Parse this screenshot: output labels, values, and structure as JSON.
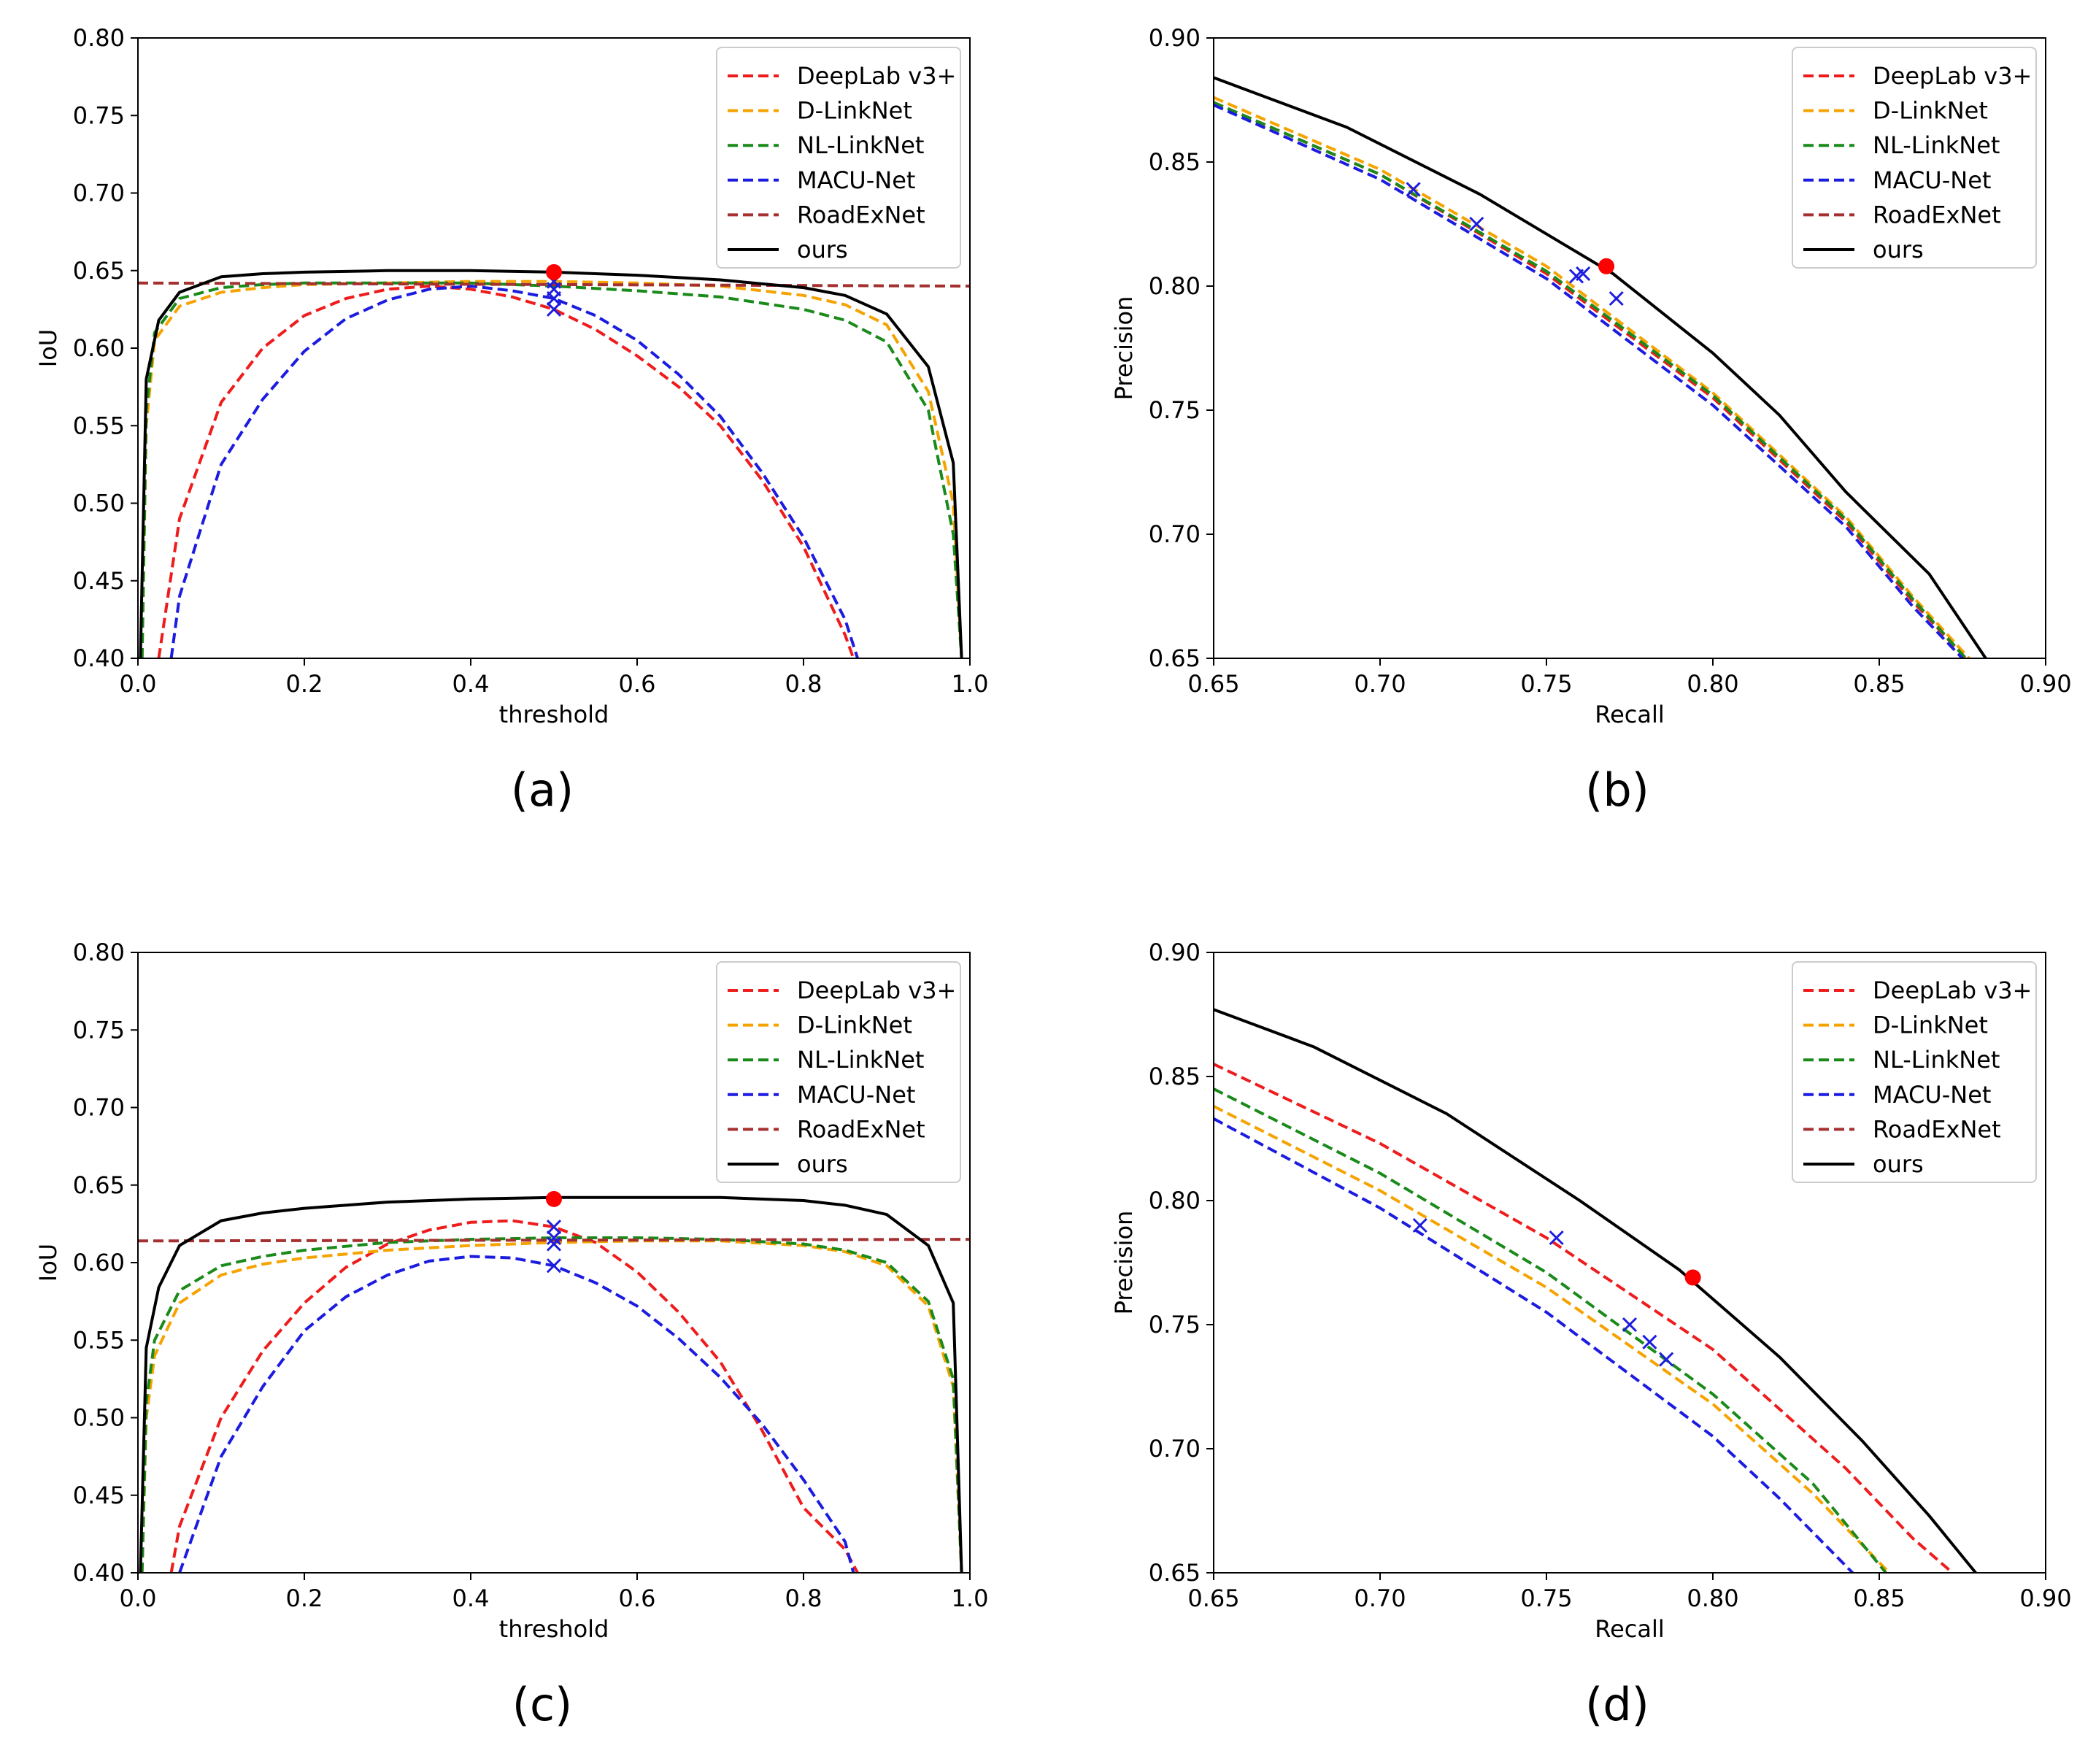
{
  "figure": {
    "legend_entries": [
      {
        "name": "DeepLab v3+",
        "color": "#ee1c1c",
        "dash": true
      },
      {
        "name": "D-LinkNet",
        "color": "#f5a300",
        "dash": true
      },
      {
        "name": "NL-LinkNet",
        "color": "#1a8a1a",
        "dash": true
      },
      {
        "name": "MACU-Net",
        "color": "#1c1ce0",
        "dash": true
      },
      {
        "name": "RoadExNet",
        "color": "#a53030",
        "dash": true
      },
      {
        "name": "ours",
        "color": "#000000",
        "dash": false
      }
    ]
  },
  "chart_data": [
    {
      "panel": "(a)",
      "type": "line",
      "xlabel": "threshold",
      "ylabel": "IoU",
      "xlim": [
        0.0,
        1.0
      ],
      "ylim": [
        0.4,
        0.8
      ],
      "xticks": [
        "0.0",
        "0.2",
        "0.4",
        "0.6",
        "0.8",
        "1.0"
      ],
      "yticks": [
        "0.40",
        "0.45",
        "0.50",
        "0.55",
        "0.60",
        "0.65",
        "0.70",
        "0.75",
        "0.80"
      ],
      "legend": "top-right",
      "series": [
        {
          "name": "DeepLab v3+",
          "x": [
            0.025,
            0.05,
            0.1,
            0.15,
            0.2,
            0.25,
            0.3,
            0.35,
            0.4,
            0.45,
            0.5,
            0.55,
            0.6,
            0.65,
            0.7,
            0.75,
            0.8,
            0.85,
            0.86
          ],
          "y": [
            0.4,
            0.49,
            0.565,
            0.6,
            0.621,
            0.632,
            0.638,
            0.64,
            0.638,
            0.633,
            0.625,
            0.612,
            0.595,
            0.575,
            0.55,
            0.515,
            0.472,
            0.415,
            0.4
          ]
        },
        {
          "name": "D-LinkNet",
          "x": [
            0.005,
            0.01,
            0.02,
            0.05,
            0.1,
            0.15,
            0.2,
            0.3,
            0.4,
            0.5,
            0.6,
            0.7,
            0.8,
            0.85,
            0.9,
            0.95,
            0.98,
            0.99
          ],
          "y": [
            0.4,
            0.55,
            0.605,
            0.627,
            0.636,
            0.639,
            0.641,
            0.642,
            0.643,
            0.643,
            0.642,
            0.64,
            0.634,
            0.628,
            0.615,
            0.572,
            0.5,
            0.4
          ]
        },
        {
          "name": "NL-LinkNet",
          "x": [
            0.005,
            0.01,
            0.02,
            0.05,
            0.1,
            0.15,
            0.2,
            0.3,
            0.4,
            0.5,
            0.6,
            0.7,
            0.8,
            0.85,
            0.9,
            0.95,
            0.98,
            0.99
          ],
          "y": [
            0.4,
            0.56,
            0.61,
            0.632,
            0.639,
            0.641,
            0.642,
            0.642,
            0.642,
            0.64,
            0.637,
            0.633,
            0.625,
            0.618,
            0.604,
            0.56,
            0.48,
            0.4
          ]
        },
        {
          "name": "MACU-Net",
          "x": [
            0.04,
            0.05,
            0.1,
            0.15,
            0.2,
            0.25,
            0.3,
            0.35,
            0.4,
            0.45,
            0.5,
            0.55,
            0.6,
            0.65,
            0.7,
            0.75,
            0.8,
            0.85,
            0.865
          ],
          "y": [
            0.4,
            0.44,
            0.525,
            0.567,
            0.598,
            0.619,
            0.631,
            0.638,
            0.64,
            0.637,
            0.632,
            0.621,
            0.605,
            0.583,
            0.556,
            0.52,
            0.478,
            0.425,
            0.4
          ]
        },
        {
          "name": "RoadExNet",
          "x": [
            0.0,
            1.0
          ],
          "y": [
            0.642,
            0.64
          ]
        },
        {
          "name": "ours",
          "x": [
            0.003,
            0.01,
            0.025,
            0.05,
            0.1,
            0.15,
            0.2,
            0.3,
            0.4,
            0.5,
            0.6,
            0.7,
            0.8,
            0.85,
            0.9,
            0.95,
            0.98,
            0.99
          ],
          "y": [
            0.4,
            0.58,
            0.618,
            0.636,
            0.646,
            0.648,
            0.649,
            0.65,
            0.65,
            0.649,
            0.647,
            0.644,
            0.639,
            0.634,
            0.622,
            0.588,
            0.526,
            0.4
          ]
        }
      ],
      "markers": [
        {
          "series": "DeepLab v3+",
          "x": 0.5,
          "y": 0.625,
          "symbol": "x"
        },
        {
          "series": "MACU-Net",
          "x": 0.5,
          "y": 0.632,
          "symbol": "x"
        },
        {
          "series": "NL-LinkNet",
          "x": 0.5,
          "y": 0.638,
          "symbol": "x"
        },
        {
          "series": "D-LinkNet",
          "x": 0.5,
          "y": 0.643,
          "symbol": "x"
        },
        {
          "series": "ours",
          "x": 0.5,
          "y": 0.649,
          "symbol": "dot"
        }
      ]
    },
    {
      "panel": "(b)",
      "type": "line",
      "xlabel": "Recall",
      "ylabel": "Precision",
      "xlim": [
        0.65,
        0.9
      ],
      "ylim": [
        0.65,
        0.9
      ],
      "xticks": [
        "0.65",
        "0.70",
        "0.75",
        "0.80",
        "0.85",
        "0.90"
      ],
      "yticks": [
        "0.65",
        "0.70",
        "0.75",
        "0.80",
        "0.85",
        "0.90"
      ],
      "legend": "top-right",
      "series": [
        {
          "name": "DeepLab v3+",
          "x": [
            0.65,
            0.7,
            0.75,
            0.8,
            0.84,
            0.86,
            0.876
          ],
          "y": [
            0.874,
            0.845,
            0.805,
            0.755,
            0.705,
            0.673,
            0.65
          ]
        },
        {
          "name": "D-LinkNet",
          "x": [
            0.65,
            0.7,
            0.75,
            0.8,
            0.84,
            0.86,
            0.877
          ],
          "y": [
            0.876,
            0.847,
            0.808,
            0.757,
            0.707,
            0.675,
            0.65
          ]
        },
        {
          "name": "NL-LinkNet",
          "x": [
            0.65,
            0.7,
            0.75,
            0.8,
            0.84,
            0.86,
            0.876
          ],
          "y": [
            0.874,
            0.845,
            0.806,
            0.756,
            0.706,
            0.674,
            0.65
          ]
        },
        {
          "name": "MACU-Net",
          "x": [
            0.65,
            0.7,
            0.75,
            0.8,
            0.84,
            0.86,
            0.875
          ],
          "y": [
            0.873,
            0.843,
            0.803,
            0.752,
            0.703,
            0.671,
            0.65
          ]
        },
        {
          "name": "ours",
          "x": [
            0.65,
            0.69,
            0.73,
            0.77,
            0.8,
            0.82,
            0.84,
            0.865,
            0.882
          ],
          "y": [
            0.884,
            0.864,
            0.837,
            0.805,
            0.773,
            0.748,
            0.717,
            0.684,
            0.65
          ]
        }
      ],
      "markers": [
        {
          "series": "MACU-Net",
          "x": 0.71,
          "y": 0.839,
          "symbol": "x"
        },
        {
          "series": "MACU-Net",
          "x": 0.729,
          "y": 0.825,
          "symbol": "x"
        },
        {
          "series": "MACU-Net",
          "x": 0.759,
          "y": 0.804,
          "symbol": "x"
        },
        {
          "series": "MACU-Net",
          "x": 0.761,
          "y": 0.805,
          "symbol": "x"
        },
        {
          "series": "MACU-Net",
          "x": 0.771,
          "y": 0.795,
          "symbol": "x"
        },
        {
          "series": "ours",
          "x": 0.768,
          "y": 0.808,
          "symbol": "dot"
        }
      ]
    },
    {
      "panel": "(c)",
      "type": "line",
      "xlabel": "threshold",
      "ylabel": "IoU",
      "xlim": [
        0.0,
        1.0
      ],
      "ylim": [
        0.4,
        0.8
      ],
      "xticks": [
        "0.0",
        "0.2",
        "0.4",
        "0.6",
        "0.8",
        "1.0"
      ],
      "yticks": [
        "0.40",
        "0.45",
        "0.50",
        "0.55",
        "0.60",
        "0.65",
        "0.70",
        "0.75",
        "0.80"
      ],
      "legend": "top-right",
      "series": [
        {
          "name": "DeepLab v3+",
          "x": [
            0.04,
            0.05,
            0.1,
            0.15,
            0.2,
            0.25,
            0.3,
            0.35,
            0.4,
            0.45,
            0.5,
            0.55,
            0.6,
            0.65,
            0.7,
            0.75,
            0.8,
            0.85,
            0.865
          ],
          "y": [
            0.4,
            0.43,
            0.5,
            0.543,
            0.574,
            0.597,
            0.612,
            0.621,
            0.626,
            0.627,
            0.623,
            0.613,
            0.594,
            0.568,
            0.536,
            0.492,
            0.442,
            0.415,
            0.4
          ]
        },
        {
          "name": "D-LinkNet",
          "x": [
            0.005,
            0.01,
            0.02,
            0.05,
            0.1,
            0.15,
            0.2,
            0.3,
            0.4,
            0.5,
            0.6,
            0.7,
            0.8,
            0.85,
            0.9,
            0.95,
            0.98,
            0.99
          ],
          "y": [
            0.4,
            0.5,
            0.54,
            0.574,
            0.592,
            0.599,
            0.603,
            0.608,
            0.611,
            0.613,
            0.614,
            0.614,
            0.611,
            0.607,
            0.598,
            0.572,
            0.52,
            0.4
          ]
        },
        {
          "name": "NL-LinkNet",
          "x": [
            0.005,
            0.01,
            0.02,
            0.05,
            0.1,
            0.15,
            0.2,
            0.3,
            0.4,
            0.5,
            0.6,
            0.7,
            0.8,
            0.85,
            0.9,
            0.95,
            0.98,
            0.99
          ],
          "y": [
            0.4,
            0.51,
            0.55,
            0.582,
            0.598,
            0.604,
            0.608,
            0.613,
            0.615,
            0.616,
            0.616,
            0.615,
            0.612,
            0.608,
            0.6,
            0.575,
            0.525,
            0.4
          ]
        },
        {
          "name": "MACU-Net",
          "x": [
            0.05,
            0.1,
            0.15,
            0.2,
            0.25,
            0.3,
            0.35,
            0.4,
            0.45,
            0.5,
            0.55,
            0.6,
            0.65,
            0.7,
            0.75,
            0.8,
            0.85,
            0.86
          ],
          "y": [
            0.4,
            0.475,
            0.52,
            0.556,
            0.578,
            0.592,
            0.601,
            0.604,
            0.603,
            0.598,
            0.587,
            0.572,
            0.551,
            0.526,
            0.496,
            0.46,
            0.42,
            0.4
          ]
        },
        {
          "name": "RoadExNet",
          "x": [
            0.0,
            1.0
          ],
          "y": [
            0.614,
            0.615
          ]
        },
        {
          "name": "ours",
          "x": [
            0.003,
            0.01,
            0.025,
            0.05,
            0.1,
            0.15,
            0.2,
            0.3,
            0.4,
            0.5,
            0.6,
            0.7,
            0.8,
            0.85,
            0.9,
            0.95,
            0.98,
            0.99
          ],
          "y": [
            0.4,
            0.545,
            0.584,
            0.611,
            0.627,
            0.632,
            0.635,
            0.639,
            0.641,
            0.642,
            0.642,
            0.642,
            0.64,
            0.637,
            0.631,
            0.611,
            0.574,
            0.4
          ]
        }
      ],
      "markers": [
        {
          "series": "MACU-Net",
          "x": 0.5,
          "y": 0.598,
          "symbol": "x"
        },
        {
          "series": "D-LinkNet",
          "x": 0.5,
          "y": 0.612,
          "symbol": "x"
        },
        {
          "series": "NL-LinkNet",
          "x": 0.5,
          "y": 0.616,
          "symbol": "x"
        },
        {
          "series": "DeepLab v3+",
          "x": 0.5,
          "y": 0.623,
          "symbol": "x"
        },
        {
          "series": "ours",
          "x": 0.5,
          "y": 0.641,
          "symbol": "dot"
        }
      ]
    },
    {
      "panel": "(d)",
      "type": "line",
      "xlabel": "Recall",
      "ylabel": "Precision",
      "xlim": [
        0.65,
        0.9
      ],
      "ylim": [
        0.65,
        0.9
      ],
      "xticks": [
        "0.65",
        "0.70",
        "0.75",
        "0.80",
        "0.85",
        "0.90"
      ],
      "yticks": [
        "0.65",
        "0.70",
        "0.75",
        "0.80",
        "0.85",
        "0.90"
      ],
      "legend": "top-right",
      "series": [
        {
          "name": "DeepLab v3+",
          "x": [
            0.65,
            0.7,
            0.75,
            0.8,
            0.84,
            0.86,
            0.872
          ],
          "y": [
            0.855,
            0.823,
            0.785,
            0.74,
            0.692,
            0.664,
            0.65
          ]
        },
        {
          "name": "D-LinkNet",
          "x": [
            0.65,
            0.7,
            0.75,
            0.8,
            0.83,
            0.853
          ],
          "y": [
            0.838,
            0.804,
            0.765,
            0.718,
            0.682,
            0.65
          ]
        },
        {
          "name": "NL-LinkNet",
          "x": [
            0.65,
            0.7,
            0.75,
            0.8,
            0.83,
            0.852
          ],
          "y": [
            0.845,
            0.811,
            0.771,
            0.722,
            0.686,
            0.65
          ]
        },
        {
          "name": "MACU-Net",
          "x": [
            0.65,
            0.7,
            0.75,
            0.8,
            0.82,
            0.842
          ],
          "y": [
            0.833,
            0.797,
            0.755,
            0.705,
            0.68,
            0.65
          ]
        },
        {
          "name": "ours",
          "x": [
            0.65,
            0.68,
            0.72,
            0.76,
            0.79,
            0.82,
            0.845,
            0.865,
            0.879
          ],
          "y": [
            0.877,
            0.862,
            0.835,
            0.8,
            0.772,
            0.737,
            0.703,
            0.673,
            0.65
          ]
        }
      ],
      "markers": [
        {
          "series": "MACU-Net",
          "x": 0.712,
          "y": 0.79,
          "symbol": "x"
        },
        {
          "series": "MACU-Net",
          "x": 0.753,
          "y": 0.785,
          "symbol": "x"
        },
        {
          "series": "MACU-Net",
          "x": 0.775,
          "y": 0.75,
          "symbol": "x"
        },
        {
          "series": "MACU-Net",
          "x": 0.781,
          "y": 0.743,
          "symbol": "x"
        },
        {
          "series": "MACU-Net",
          "x": 0.786,
          "y": 0.736,
          "symbol": "x"
        },
        {
          "series": "ours",
          "x": 0.794,
          "y": 0.769,
          "symbol": "dot"
        }
      ]
    }
  ]
}
